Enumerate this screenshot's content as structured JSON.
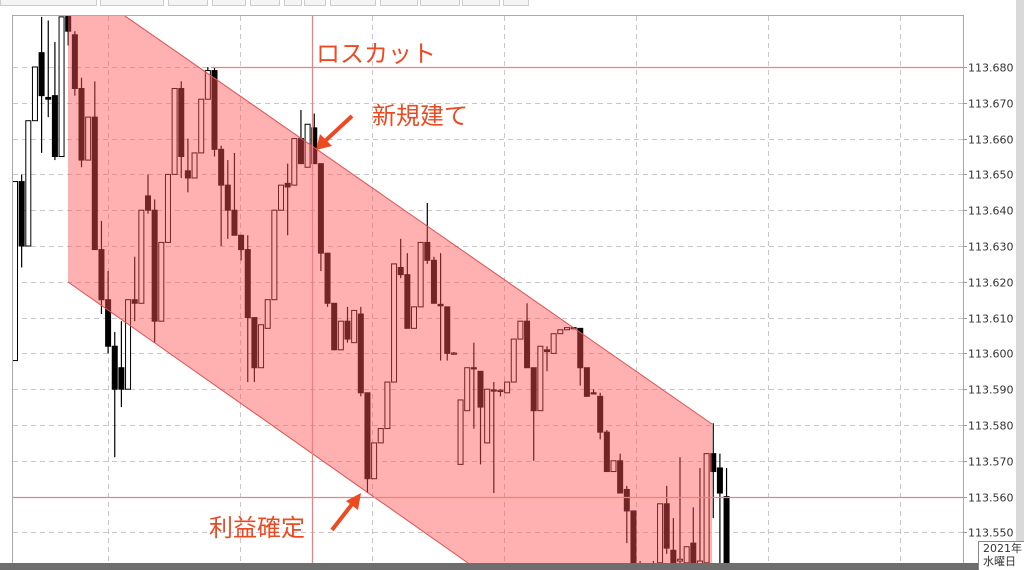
{
  "chart_data": {
    "type": "candlestick",
    "title": "",
    "xlabel": "",
    "ylabel": "",
    "ylim": [
      113.5435,
      113.695
    ],
    "y_ticks": [
      "113.680",
      "113.670",
      "113.660",
      "113.650",
      "113.640",
      "113.630",
      "113.620",
      "113.610",
      "113.600",
      "113.590",
      "113.580",
      "113.570",
      "113.560",
      "113.550"
    ],
    "grid": true,
    "candle_format": [
      "open",
      "high",
      "low",
      "close"
    ],
    "candles": [
      [
        113.598,
        113.648,
        113.598,
        113.648
      ],
      [
        113.648,
        113.65,
        113.624,
        113.63
      ],
      [
        113.63,
        113.665,
        113.63,
        113.665
      ],
      [
        113.665,
        113.68,
        113.665,
        113.68
      ],
      [
        113.684,
        113.694,
        113.656,
        113.672
      ],
      [
        113.6715,
        113.693,
        113.666,
        113.671
      ],
      [
        113.672,
        113.687,
        113.654,
        113.655
      ],
      [
        113.655,
        113.694,
        113.655,
        113.694
      ],
      [
        113.695,
        113.696,
        113.686,
        113.69
      ],
      [
        113.689,
        113.69,
        113.672,
        113.674
      ],
      [
        113.674,
        113.677,
        113.652,
        113.654
      ],
      [
        113.654,
        113.666,
        113.654,
        113.666
      ],
      [
        113.666,
        113.676,
        113.629,
        113.629
      ],
      [
        113.629,
        113.637,
        113.611,
        113.615
      ],
      [
        113.615,
        113.623,
        113.6,
        113.602
      ],
      [
        113.602,
        113.606,
        113.571,
        113.59
      ],
      [
        113.596,
        113.609,
        113.585,
        113.59
      ],
      [
        113.59,
        113.615,
        113.59,
        113.615
      ],
      [
        113.615,
        113.627,
        113.609,
        113.614
      ],
      [
        113.614,
        113.64,
        113.614,
        113.64
      ],
      [
        113.644,
        113.65,
        113.639,
        113.64
      ],
      [
        113.64,
        113.643,
        113.603,
        113.609
      ],
      [
        113.609,
        113.631,
        113.609,
        113.631
      ],
      [
        113.631,
        113.65,
        113.631,
        113.65
      ],
      [
        113.65,
        113.674,
        113.65,
        113.674
      ],
      [
        113.674,
        113.676,
        113.649,
        113.655
      ],
      [
        113.651,
        113.66,
        113.645,
        113.649
      ],
      [
        113.649,
        113.656,
        113.649,
        113.656
      ],
      [
        113.656,
        113.671,
        113.656,
        113.671
      ],
      [
        113.671,
        113.68,
        113.671,
        113.679
      ],
      [
        113.679,
        113.68,
        113.655,
        113.657
      ],
      [
        113.657,
        113.658,
        113.63,
        113.647
      ],
      [
        113.647,
        113.654,
        113.632,
        113.64
      ],
      [
        113.64,
        113.656,
        113.633,
        113.633
      ],
      [
        113.633,
        113.633,
        113.626,
        113.629
      ],
      [
        113.629,
        113.633,
        113.592,
        113.61
      ],
      [
        113.61,
        113.61,
        113.592,
        113.596
      ],
      [
        113.596,
        113.608,
        113.596,
        113.608
      ],
      [
        113.607,
        113.615,
        113.607,
        113.615
      ],
      [
        113.615,
        113.64,
        113.615,
        113.64
      ],
      [
        113.64,
        113.647,
        113.64,
        113.647
      ],
      [
        113.6475,
        113.653,
        113.633,
        113.6465
      ],
      [
        113.647,
        113.66,
        113.647,
        113.66
      ],
      [
        113.66,
        113.668,
        113.653,
        113.653
      ],
      [
        113.652,
        113.664,
        113.652,
        113.664
      ],
      [
        113.663,
        113.667,
        113.653,
        113.653
      ],
      [
        113.653,
        113.653,
        113.623,
        113.628
      ],
      [
        113.628,
        113.628,
        113.613,
        113.614
      ],
      [
        113.614,
        113.614,
        113.601,
        113.601
      ],
      [
        113.601,
        113.609,
        113.601,
        113.609
      ],
      [
        113.609,
        113.613,
        113.603,
        113.604
      ],
      [
        113.603,
        113.612,
        113.603,
        113.612
      ],
      [
        113.611,
        113.613,
        113.588,
        113.589
      ],
      [
        113.589,
        113.589,
        113.561,
        113.565
      ],
      [
        113.565,
        113.575,
        113.565,
        113.575
      ],
      [
        113.575,
        113.579,
        113.575,
        113.579
      ],
      [
        113.579,
        113.592,
        113.579,
        113.592
      ],
      [
        113.592,
        113.625,
        113.592,
        113.625
      ],
      [
        113.624,
        113.632,
        113.621,
        113.622
      ],
      [
        113.622,
        113.628,
        113.607,
        113.607
      ],
      [
        113.607,
        113.613,
        113.607,
        113.613
      ],
      [
        113.613,
        113.631,
        113.613,
        113.631
      ],
      [
        113.631,
        113.642,
        113.625,
        113.626
      ],
      [
        113.626,
        113.627,
        113.614,
        113.614
      ],
      [
        113.6137,
        113.628,
        113.598,
        113.6133
      ],
      [
        113.613,
        113.613,
        113.598,
        113.6
      ],
      [
        113.6,
        113.6004,
        113.5996,
        113.6001
      ],
      [
        113.569,
        113.587,
        113.569,
        113.587
      ],
      [
        113.584,
        113.596,
        113.584,
        113.596
      ],
      [
        113.596,
        113.603,
        113.579,
        113.5958
      ],
      [
        113.595,
        113.595,
        113.569,
        113.585
      ],
      [
        113.575,
        113.59,
        113.575,
        113.59
      ],
      [
        113.5898,
        113.592,
        113.561,
        113.5895
      ],
      [
        113.5895,
        113.59,
        113.588,
        113.5897
      ],
      [
        113.589,
        113.592,
        113.589,
        113.592
      ],
      [
        113.592,
        113.604,
        113.592,
        113.604
      ],
      [
        113.604,
        113.609,
        113.604,
        113.609
      ],
      [
        113.609,
        113.614,
        113.596,
        113.596
      ],
      [
        113.596,
        113.596,
        113.57,
        113.584
      ],
      [
        113.584,
        113.602,
        113.584,
        113.602
      ],
      [
        113.601,
        113.602,
        113.595,
        113.6005
      ],
      [
        113.6,
        113.6055,
        113.6,
        113.6055
      ],
      [
        113.6055,
        113.6066,
        113.6055,
        113.6066
      ],
      [
        113.6066,
        113.6072,
        113.6066,
        113.6072
      ],
      [
        113.607,
        113.6072,
        113.607,
        113.6072
      ],
      [
        113.607,
        113.607,
        113.591,
        113.596
      ],
      [
        113.596,
        113.596,
        113.588,
        113.588
      ],
      [
        113.589,
        113.59,
        113.5886,
        113.5888
      ],
      [
        113.588,
        113.589,
        113.576,
        113.578
      ],
      [
        113.578,
        113.5786,
        113.567,
        113.567
      ],
      [
        113.567,
        113.57,
        113.567,
        113.57
      ],
      [
        113.57,
        113.572,
        113.561,
        113.561
      ],
      [
        113.562,
        113.563,
        113.547,
        113.556
      ],
      [
        113.556,
        113.556,
        113.54,
        113.5415
      ],
      [
        113.541,
        113.542,
        113.536,
        113.538
      ],
      [
        113.538,
        113.541,
        113.535,
        113.54
      ],
      [
        113.54,
        113.542,
        113.537,
        113.539
      ],
      [
        113.5415,
        113.558,
        113.541,
        113.558
      ],
      [
        113.558,
        113.563,
        113.544,
        113.5456
      ],
      [
        113.545,
        113.554,
        113.54,
        113.5415
      ],
      [
        113.542,
        113.571,
        113.54,
        113.5425
      ],
      [
        113.5415,
        113.546,
        113.541,
        113.546
      ],
      [
        113.547,
        113.557,
        113.54,
        113.5415
      ],
      [
        113.541,
        113.568,
        113.54,
        113.542
      ],
      [
        113.5415,
        113.572,
        113.541,
        113.572
      ],
      [
        113.572,
        113.5805,
        113.554,
        113.567
      ],
      [
        113.568,
        113.572,
        113.54,
        113.561
      ],
      [
        113.56,
        113.568,
        113.54,
        113.5415
      ]
    ],
    "horizontal_lines": [
      113.68,
      113.56
    ],
    "annotations": {
      "stop_loss": "ロスカット",
      "entry": "新規建て",
      "take_profit": "利益確定"
    },
    "colors": {
      "bull_fill": "#ffffff",
      "bear_fill": "#000000",
      "channel": "#ff5050",
      "level_line": "#f08080",
      "annotation": "#ee4a22",
      "grid": "#c8c8c8"
    }
  },
  "date_box": {
    "year": "2021年",
    "weekday": "水曜日"
  }
}
